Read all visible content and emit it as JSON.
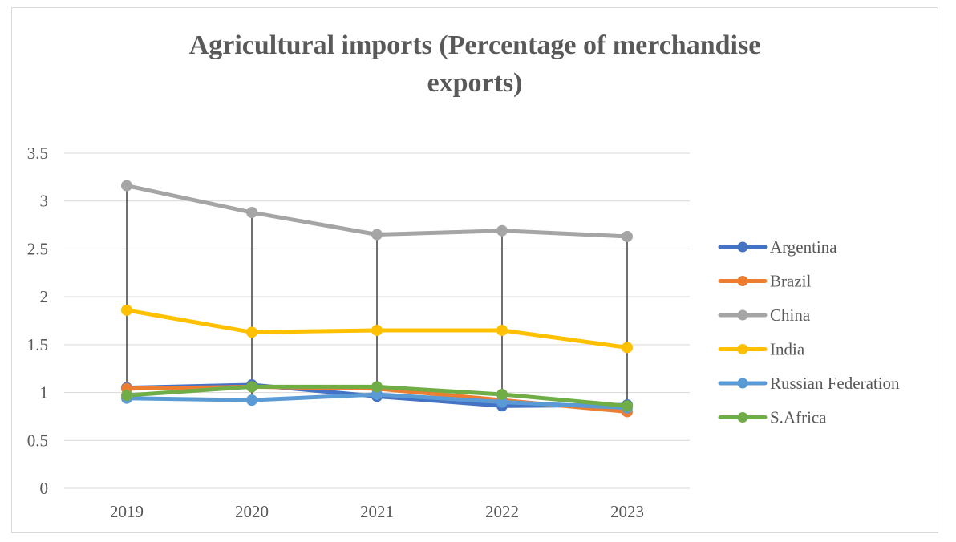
{
  "chart_data": {
    "type": "line",
    "title_lines": [
      "Agricultural imports (Percentage of merchandise",
      "exports)"
    ],
    "categories": [
      "2019",
      "2020",
      "2021",
      "2022",
      "2023"
    ],
    "yticks": [
      "0",
      "0.5",
      "1",
      "1.5",
      "2",
      "2.5",
      "3",
      "3.5"
    ],
    "ylim": [
      0,
      3.5
    ],
    "grid": true,
    "legend_position": "right",
    "drop_lines": true,
    "series": [
      {
        "name": "Argentina",
        "color": "#4472c4",
        "values": [
          1.05,
          1.08,
          0.96,
          0.86,
          0.87
        ]
      },
      {
        "name": "Brazil",
        "color": "#ed7d31",
        "values": [
          1.04,
          1.06,
          1.04,
          0.92,
          0.8
        ]
      },
      {
        "name": "China",
        "color": "#a5a5a5",
        "values": [
          3.16,
          2.88,
          2.65,
          2.69,
          2.63
        ]
      },
      {
        "name": "India",
        "color": "#ffc000",
        "values": [
          1.86,
          1.63,
          1.65,
          1.65,
          1.47
        ]
      },
      {
        "name": "Russian Federation",
        "color": "#5b9bd5",
        "values": [
          0.94,
          0.92,
          0.98,
          0.9,
          0.84
        ]
      },
      {
        "name": "S.Africa",
        "color": "#70ad47",
        "values": [
          0.97,
          1.06,
          1.06,
          0.98,
          0.86
        ]
      }
    ]
  }
}
